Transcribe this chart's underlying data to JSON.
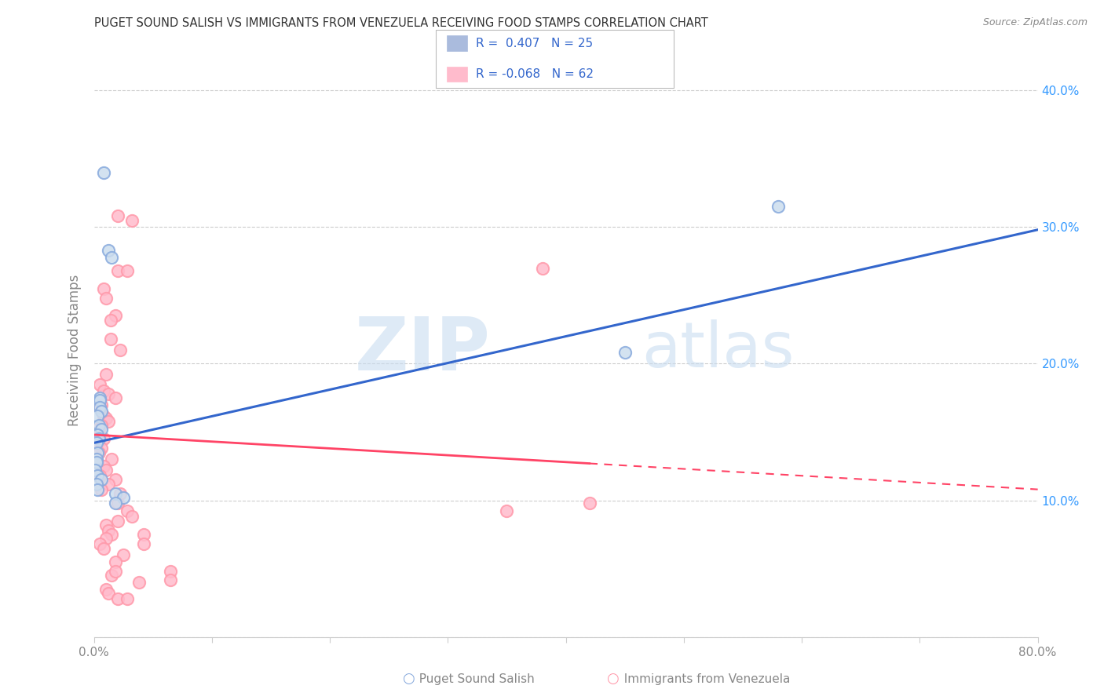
{
  "title": "PUGET SOUND SALISH VS IMMIGRANTS FROM VENEZUELA RECEIVING FOOD STAMPS CORRELATION CHART",
  "source": "Source: ZipAtlas.com",
  "ylabel": "Receiving Food Stamps",
  "xlim": [
    0.0,
    0.8
  ],
  "ylim": [
    0.0,
    0.42
  ],
  "blue_color": "#88AADD",
  "pink_color": "#FF99AA",
  "blue_line_color": "#3366CC",
  "pink_line_color": "#FF4466",
  "watermark": "ZIPatlas",
  "blue_points": [
    [
      0.008,
      0.34
    ],
    [
      0.012,
      0.283
    ],
    [
      0.015,
      0.278
    ],
    [
      0.005,
      0.175
    ],
    [
      0.005,
      0.173
    ],
    [
      0.005,
      0.168
    ],
    [
      0.006,
      0.165
    ],
    [
      0.003,
      0.162
    ],
    [
      0.004,
      0.155
    ],
    [
      0.006,
      0.152
    ],
    [
      0.003,
      0.148
    ],
    [
      0.004,
      0.145
    ],
    [
      0.002,
      0.142
    ],
    [
      0.003,
      0.135
    ],
    [
      0.002,
      0.13
    ],
    [
      0.002,
      0.128
    ],
    [
      0.001,
      0.122
    ],
    [
      0.003,
      0.118
    ],
    [
      0.006,
      0.115
    ],
    [
      0.002,
      0.112
    ],
    [
      0.003,
      0.108
    ],
    [
      0.018,
      0.105
    ],
    [
      0.025,
      0.102
    ],
    [
      0.018,
      0.098
    ],
    [
      0.58,
      0.315
    ],
    [
      0.45,
      0.208
    ]
  ],
  "pink_points": [
    [
      0.02,
      0.308
    ],
    [
      0.032,
      0.305
    ],
    [
      0.02,
      0.268
    ],
    [
      0.028,
      0.268
    ],
    [
      0.008,
      0.255
    ],
    [
      0.01,
      0.248
    ],
    [
      0.018,
      0.235
    ],
    [
      0.014,
      0.232
    ],
    [
      0.014,
      0.218
    ],
    [
      0.022,
      0.21
    ],
    [
      0.01,
      0.192
    ],
    [
      0.005,
      0.185
    ],
    [
      0.008,
      0.18
    ],
    [
      0.012,
      0.178
    ],
    [
      0.018,
      0.175
    ],
    [
      0.006,
      0.17
    ],
    [
      0.005,
      0.168
    ],
    [
      0.008,
      0.162
    ],
    [
      0.01,
      0.16
    ],
    [
      0.012,
      0.158
    ],
    [
      0.006,
      0.155
    ],
    [
      0.003,
      0.152
    ],
    [
      0.005,
      0.148
    ],
    [
      0.008,
      0.145
    ],
    [
      0.003,
      0.142
    ],
    [
      0.006,
      0.138
    ],
    [
      0.004,
      0.135
    ],
    [
      0.015,
      0.13
    ],
    [
      0.003,
      0.128
    ],
    [
      0.008,
      0.125
    ],
    [
      0.01,
      0.122
    ],
    [
      0.005,
      0.118
    ],
    [
      0.018,
      0.115
    ],
    [
      0.012,
      0.112
    ],
    [
      0.006,
      0.108
    ],
    [
      0.022,
      0.105
    ],
    [
      0.02,
      0.098
    ],
    [
      0.028,
      0.092
    ],
    [
      0.032,
      0.088
    ],
    [
      0.02,
      0.085
    ],
    [
      0.01,
      0.082
    ],
    [
      0.012,
      0.078
    ],
    [
      0.015,
      0.075
    ],
    [
      0.01,
      0.072
    ],
    [
      0.005,
      0.068
    ],
    [
      0.008,
      0.065
    ],
    [
      0.025,
      0.06
    ],
    [
      0.018,
      0.055
    ],
    [
      0.42,
      0.098
    ],
    [
      0.35,
      0.092
    ],
    [
      0.38,
      0.27
    ],
    [
      0.015,
      0.045
    ],
    [
      0.018,
      0.048
    ],
    [
      0.01,
      0.035
    ],
    [
      0.012,
      0.032
    ],
    [
      0.02,
      0.028
    ],
    [
      0.042,
      0.075
    ],
    [
      0.042,
      0.068
    ],
    [
      0.065,
      0.048
    ],
    [
      0.065,
      0.042
    ],
    [
      0.028,
      0.028
    ],
    [
      0.038,
      0.04
    ]
  ],
  "blue_regression": [
    0.0,
    0.8,
    0.142,
    0.298
  ],
  "pink_regression": [
    0.0,
    0.8,
    0.148,
    0.108
  ],
  "pink_regression_solid_end": 0.42,
  "background_color": "#FFFFFF",
  "grid_color": "#CCCCCC",
  "title_color": "#333333",
  "axis_color": "#888888",
  "right_axis_color": "#3399FF",
  "marker_size": 120
}
